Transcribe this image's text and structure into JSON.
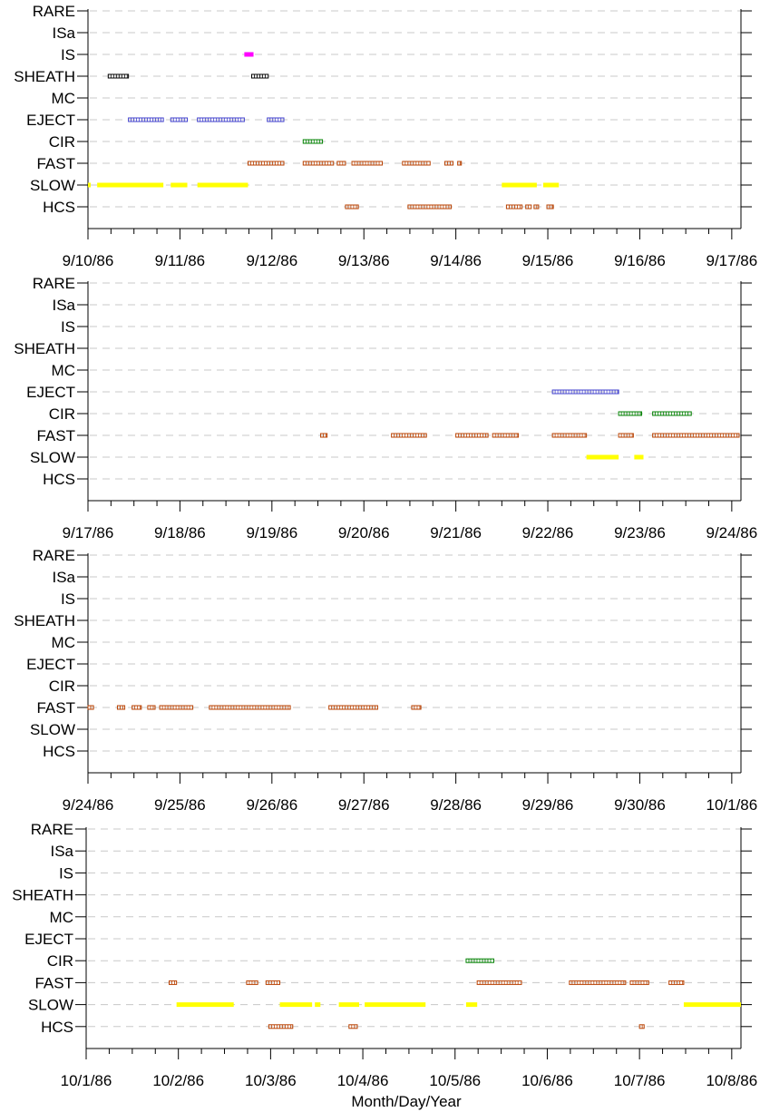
{
  "chart_data": {
    "type": "timeline",
    "xlabel": "Month/Day/Year",
    "categories": [
      "RARE",
      "ISa",
      "IS",
      "SHEATH",
      "MC",
      "EJECT",
      "CIR",
      "FAST",
      "SLOW",
      "HCS"
    ],
    "colors": {
      "IS": "#ff00ff",
      "SHEATH": "#000000",
      "EJECT": "#4040cc",
      "CIR": "#008000",
      "FAST": "#b84000",
      "SLOW": "#ffff00",
      "HCS": "#b84000"
    },
    "grid": "dashed horizontal",
    "panels": [
      {
        "x_ticks": [
          "9/10/86",
          "9/11/86",
          "9/12/86",
          "9/13/86",
          "9/14/86",
          "9/15/86",
          "9/16/86",
          "9/17/86"
        ],
        "events": {
          "IS": [
            [
              1.7,
              1.8
            ]
          ],
          "SHEATH": [
            [
              0.22,
              0.44
            ],
            [
              1.78,
              1.96
            ]
          ],
          "EJECT": [
            [
              0.44,
              0.82
            ],
            [
              0.9,
              1.08
            ],
            [
              1.19,
              1.7
            ],
            [
              1.95,
              2.13
            ]
          ],
          "CIR": [
            [
              2.34,
              2.55
            ]
          ],
          "FAST": [
            [
              1.74,
              2.13
            ],
            [
              2.34,
              2.67
            ],
            [
              2.71,
              2.8
            ],
            [
              2.87,
              3.2
            ],
            [
              3.42,
              3.72
            ],
            [
              3.88,
              3.97
            ],
            [
              4.02,
              4.06
            ]
          ],
          "SLOW": [
            [
              -0.05,
              0.02
            ],
            [
              0.1,
              0.82
            ],
            [
              0.9,
              1.08
            ],
            [
              1.19,
              1.74
            ],
            [
              4.5,
              4.88
            ],
            [
              4.95,
              5.12
            ]
          ],
          "HCS": [
            [
              2.8,
              2.94
            ],
            [
              3.48,
              3.95
            ],
            [
              4.55,
              4.72
            ],
            [
              4.76,
              4.82
            ],
            [
              4.85,
              4.9
            ],
            [
              4.99,
              5.06
            ]
          ]
        }
      },
      {
        "x_ticks": [
          "9/17/86",
          "9/18/86",
          "9/19/86",
          "9/20/86",
          "9/21/86",
          "9/22/86",
          "9/23/86",
          "9/24/86"
        ],
        "events": {
          "EJECT": [
            [
              5.05,
              5.77
            ]
          ],
          "CIR": [
            [
              5.77,
              6.02
            ],
            [
              6.14,
              6.56
            ]
          ],
          "FAST": [
            [
              2.53,
              2.6
            ],
            [
              3.3,
              3.68
            ],
            [
              4.0,
              4.35
            ],
            [
              4.4,
              4.68
            ],
            [
              5.05,
              5.42
            ],
            [
              5.77,
              5.93
            ],
            [
              6.14,
              7.08
            ]
          ],
          "SLOW": [
            [
              5.42,
              5.77
            ],
            [
              5.94,
              6.04
            ]
          ]
        }
      },
      {
        "x_ticks": [
          "9/24/86",
          "9/25/86",
          "9/26/86",
          "9/27/86",
          "9/28/86",
          "9/29/86",
          "9/30/86",
          "10/1/86"
        ],
        "events": {
          "FAST": [
            [
              0.0,
              0.06
            ],
            [
              0.32,
              0.4
            ],
            [
              0.48,
              0.58
            ],
            [
              0.65,
              0.73
            ],
            [
              0.78,
              1.14
            ],
            [
              1.32,
              2.2
            ],
            [
              2.62,
              3.15
            ],
            [
              3.52,
              3.62
            ]
          ]
        }
      },
      {
        "x_ticks": [
          "10/1/86",
          "10/2/86",
          "10/3/86",
          "10/4/86",
          "10/5/86",
          "10/6/86",
          "10/7/86",
          "10/8/86"
        ],
        "events": {
          "CIR": [
            [
              4.12,
              4.42
            ]
          ],
          "FAST": [
            [
              0.9,
              0.98
            ],
            [
              1.74,
              1.86
            ],
            [
              1.95,
              2.1
            ],
            [
              4.24,
              4.72
            ],
            [
              5.24,
              5.85
            ],
            [
              5.9,
              6.1
            ],
            [
              6.32,
              6.48
            ]
          ],
          "SLOW": [
            [
              0.98,
              1.6
            ],
            [
              2.1,
              2.45
            ],
            [
              2.48,
              2.54
            ],
            [
              2.74,
              2.96
            ],
            [
              3.02,
              3.68
            ],
            [
              4.12,
              4.24
            ],
            [
              6.48,
              7.18
            ]
          ],
          "HCS": [
            [
              1.98,
              2.24
            ],
            [
              2.85,
              2.94
            ],
            [
              6.0,
              6.05
            ]
          ]
        }
      }
    ]
  }
}
